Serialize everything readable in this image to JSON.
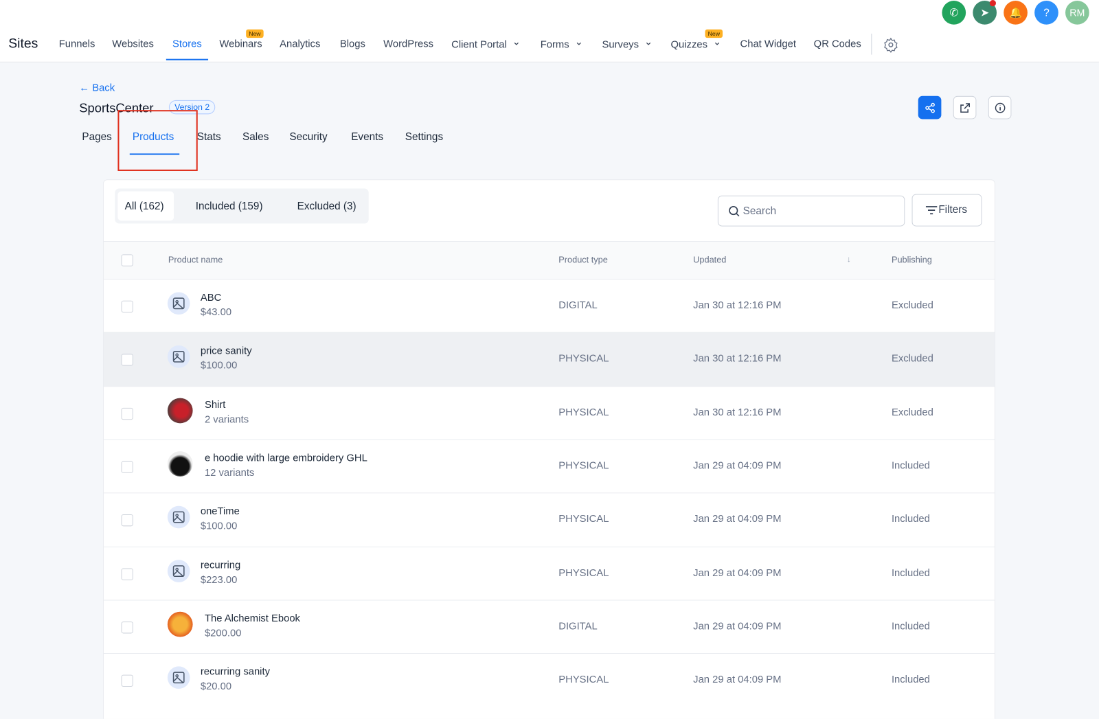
{
  "header": {
    "title": "Sites",
    "nav": [
      {
        "label": "Funnels"
      },
      {
        "label": "Websites"
      },
      {
        "label": "Stores"
      },
      {
        "label": "Webinars",
        "badge": "New"
      },
      {
        "label": "Analytics"
      },
      {
        "label": "Blogs"
      },
      {
        "label": "WordPress"
      },
      {
        "label": "Client Portal"
      },
      {
        "label": "Forms"
      },
      {
        "label": "Surveys"
      },
      {
        "label": "Quizzes",
        "badge": "New"
      },
      {
        "label": "Chat Widget"
      },
      {
        "label": "QR Codes"
      }
    ],
    "help": "?",
    "avatar": "RM"
  },
  "site": {
    "back": "Back",
    "name": "SportsCenter",
    "version": "Version 2"
  },
  "tabs": [
    "Pages",
    "Products",
    "Stats",
    "Sales",
    "Security",
    "Events",
    "Settings"
  ],
  "filter_tabs": [
    "All (162)",
    "Included (159)",
    "Excluded (3)"
  ],
  "search": "Search",
  "filters": "Filters",
  "table": {
    "columns": [
      "Product name",
      "Product type",
      "Updated",
      "Publishing"
    ],
    "rows": [
      {
        "name": "ABC",
        "sub": "$43.00",
        "type": "DIGITAL",
        "updated": "Jan 30 at 12:16 PM",
        "publishing": "Excluded"
      },
      {
        "name": "price sanity",
        "sub": "$100.00",
        "type": "PHYSICAL",
        "updated": "Jan 30 at 12:16 PM",
        "publishing": "Excluded"
      },
      {
        "name": "Shirt",
        "sub": "2 variants",
        "type": "PHYSICAL",
        "updated": "Jan 30 at 12:16 PM",
        "publishing": "Excluded"
      },
      {
        "name": "e hoodie with large embroidery GHL",
        "sub": "12 variants",
        "type": "PHYSICAL",
        "updated": "Jan 29 at 04:09 PM",
        "publishing": "Included"
      },
      {
        "name": "oneTime",
        "sub": "$100.00",
        "type": "PHYSICAL",
        "updated": "Jan 29 at 04:09 PM",
        "publishing": "Included"
      },
      {
        "name": "recurring",
        "sub": "$223.00",
        "type": "PHYSICAL",
        "updated": "Jan 29 at 04:09 PM",
        "publishing": "Included"
      },
      {
        "name": "The Alchemist Ebook",
        "sub": "$200.00",
        "type": "DIGITAL",
        "updated": "Jan 29 at 04:09 PM",
        "publishing": "Included"
      },
      {
        "name": "recurring sanity",
        "sub": "$20.00",
        "type": "PHYSICAL",
        "updated": "Jan 29 at 04:09 PM",
        "publishing": "Included"
      }
    ]
  }
}
